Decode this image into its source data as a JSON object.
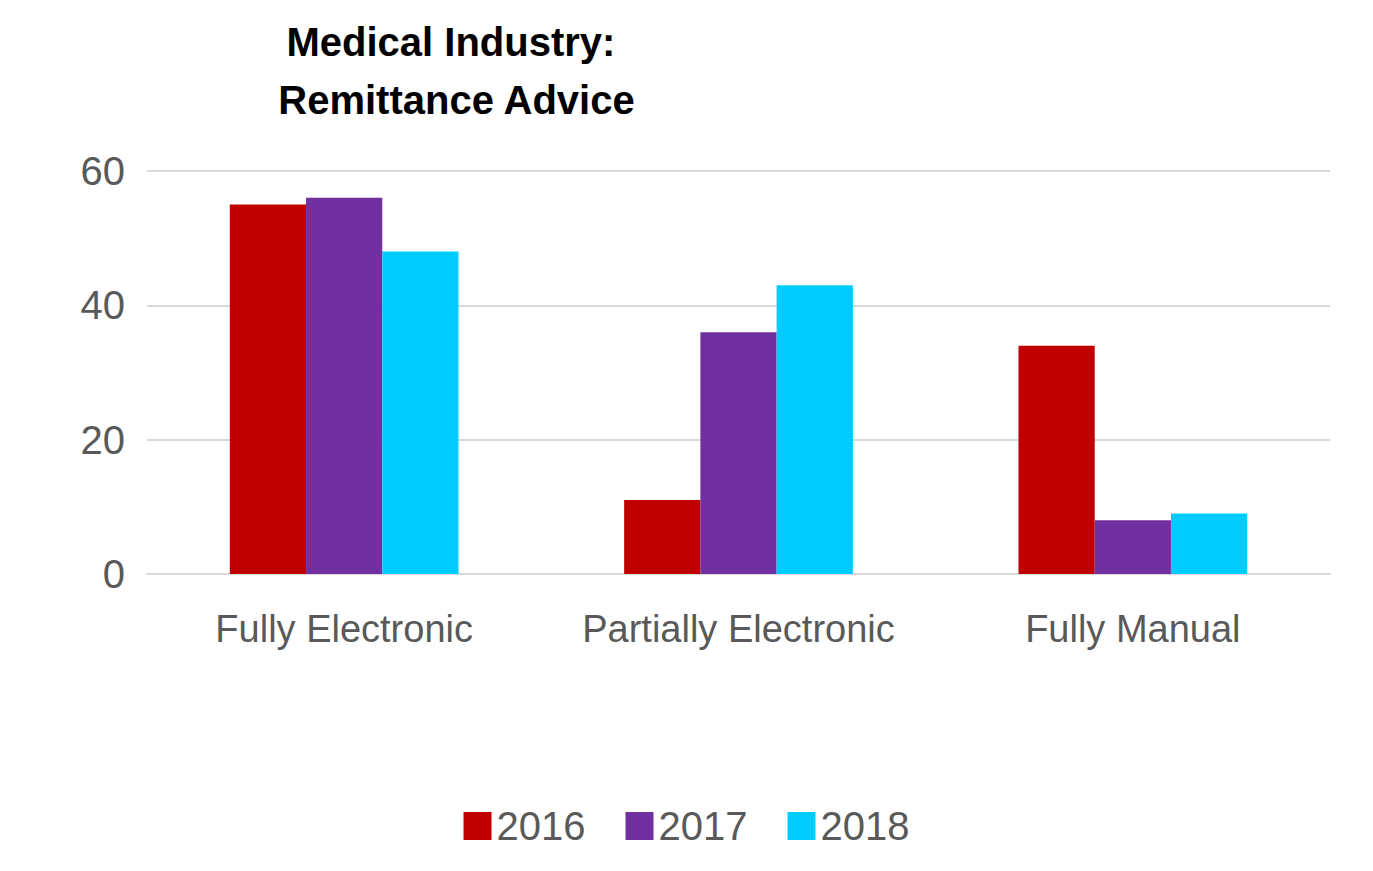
{
  "chart_data": {
    "type": "bar",
    "title": "Medical Industry: Remittance Advice",
    "categories": [
      "Fully Electronic",
      "Partially Electronic",
      "Fully Manual"
    ],
    "series": [
      {
        "name": "2016",
        "color": "#C00000",
        "values": [
          55,
          11,
          34
        ]
      },
      {
        "name": "2017",
        "color": "#7030A0",
        "values": [
          56,
          36,
          8
        ]
      },
      {
        "name": "2018",
        "color": "#00CCFF",
        "values": [
          48,
          43,
          9
        ]
      }
    ],
    "ylim": [
      0,
      60
    ],
    "yticks": [
      0,
      20,
      40,
      60
    ],
    "grid": true,
    "legend": "bottom"
  }
}
